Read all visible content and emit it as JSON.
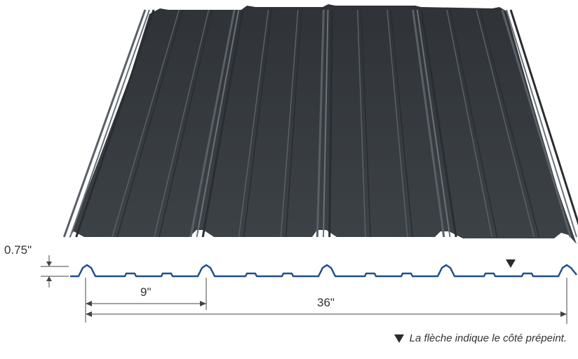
{
  "dimensions": {
    "rib_height": "0.75\"",
    "rib_spacing": "9\"",
    "coverage_width": "36\""
  },
  "legend": {
    "text": "La flèche indique le côté prépeint."
  },
  "colors": {
    "panel": "#3b3f44",
    "panel_dark": "#2a2d31",
    "panel_light": "#5a6067",
    "profile_line": "#1f4f8f",
    "dimension_line": "#444444",
    "arrow_marker": "#2b2b2b"
  },
  "icons": {
    "prepainted_marker": "down-triangle"
  }
}
